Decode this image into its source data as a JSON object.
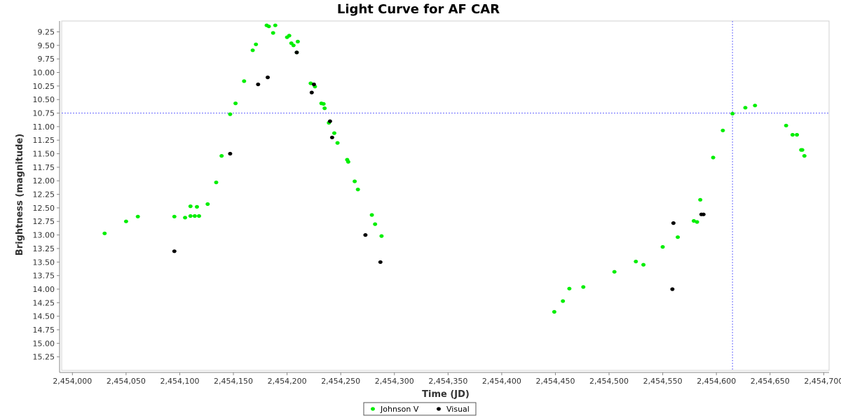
{
  "chart_data": {
    "type": "scatter",
    "title": "Light Curve for AF CAR",
    "xlabel": "Time (JD)",
    "ylabel": "Brightness (magnitude)",
    "xlim": [
      2453990,
      2454705
    ],
    "ylim": [
      9.05,
      15.5
    ],
    "y_inverted": true,
    "x_ticks": [
      2454000,
      2454050,
      2454100,
      2454150,
      2454200,
      2454250,
      2454300,
      2454350,
      2454400,
      2454450,
      2454500,
      2454550,
      2454600,
      2454650,
      2454700
    ],
    "x_tick_labels": [
      "2,454,000",
      "2,454,050",
      "2,454,100",
      "2,454,150",
      "2,454,200",
      "2,454,250",
      "2,454,300",
      "2,454,350",
      "2,454,400",
      "2,454,450",
      "2,454,500",
      "2,454,550",
      "2,454,600",
      "2,454,650",
      "2,454,700"
    ],
    "y_ticks": [
      9.25,
      9.5,
      9.75,
      10.0,
      10.25,
      10.5,
      10.75,
      11.0,
      11.25,
      11.5,
      11.75,
      12.0,
      12.25,
      12.5,
      12.75,
      13.0,
      13.25,
      13.5,
      13.75,
      14.0,
      14.25,
      14.5,
      14.75,
      15.0,
      15.25
    ],
    "y_tick_labels": [
      "9.25",
      "9.50",
      "9.75",
      "10.00",
      "10.25",
      "10.50",
      "10.75",
      "11.00",
      "11.25",
      "11.50",
      "11.75",
      "12.00",
      "12.25",
      "12.50",
      "12.75",
      "13.00",
      "13.25",
      "13.50",
      "13.75",
      "14.00",
      "14.25",
      "14.50",
      "14.75",
      "15.00",
      "15.25"
    ],
    "crosshair": {
      "x": 2454615,
      "y": 10.75,
      "color": "#6a6aff"
    },
    "grid": false,
    "legend_position": "bottom-center",
    "series": [
      {
        "name": "Johnson V",
        "color": "#00ee00",
        "points": [
          [
            2454030,
            12.97
          ],
          [
            2454050,
            12.75
          ],
          [
            2454061,
            12.66
          ],
          [
            2454095,
            12.66
          ],
          [
            2454105,
            12.68
          ],
          [
            2454110,
            12.47
          ],
          [
            2454110,
            12.65
          ],
          [
            2454114,
            12.65
          ],
          [
            2454116,
            12.48
          ],
          [
            2454118,
            12.65
          ],
          [
            2454126,
            12.43
          ],
          [
            2454134,
            12.03
          ],
          [
            2454139,
            11.54
          ],
          [
            2454147,
            10.77
          ],
          [
            2454152,
            10.57
          ],
          [
            2454160,
            10.16
          ],
          [
            2454168,
            9.59
          ],
          [
            2454171,
            9.48
          ],
          [
            2454181,
            9.13
          ],
          [
            2454183,
            9.15
          ],
          [
            2454187,
            9.27
          ],
          [
            2454189,
            9.13
          ],
          [
            2454200,
            9.35
          ],
          [
            2454202,
            9.32
          ],
          [
            2454204,
            9.46
          ],
          [
            2454206,
            9.5
          ],
          [
            2454209,
            9.63
          ],
          [
            2454210,
            9.43
          ],
          [
            2454222,
            10.2
          ],
          [
            2454226,
            10.26
          ],
          [
            2454232,
            10.57
          ],
          [
            2454234,
            10.58
          ],
          [
            2454235,
            10.66
          ],
          [
            2454239,
            10.93
          ],
          [
            2454244,
            11.12
          ],
          [
            2454247,
            11.3
          ],
          [
            2454256,
            11.61
          ],
          [
            2454257,
            11.65
          ],
          [
            2454263,
            12.01
          ],
          [
            2454266,
            12.16
          ],
          [
            2454279,
            12.63
          ],
          [
            2454282,
            12.8
          ],
          [
            2454288,
            13.02
          ],
          [
            2454449,
            14.42
          ],
          [
            2454457,
            14.22
          ],
          [
            2454463,
            13.99
          ],
          [
            2454476,
            13.96
          ],
          [
            2454505,
            13.68
          ],
          [
            2454525,
            13.49
          ],
          [
            2454532,
            13.55
          ],
          [
            2454550,
            13.22
          ],
          [
            2454564,
            13.04
          ],
          [
            2454579,
            12.74
          ],
          [
            2454582,
            12.76
          ],
          [
            2454585,
            12.35
          ],
          [
            2454597,
            11.57
          ],
          [
            2454606,
            11.07
          ],
          [
            2454615,
            10.76
          ],
          [
            2454627,
            10.65
          ],
          [
            2454636,
            10.61
          ],
          [
            2454665,
            10.98
          ],
          [
            2454671,
            11.15
          ],
          [
            2454675,
            11.15
          ],
          [
            2454679,
            11.43
          ],
          [
            2454680,
            11.43
          ],
          [
            2454682,
            11.54
          ]
        ]
      },
      {
        "name": "Visual",
        "color": "#000000",
        "points": [
          [
            2454095,
            13.3
          ],
          [
            2454147,
            11.5
          ],
          [
            2454173,
            10.22
          ],
          [
            2454182,
            10.09
          ],
          [
            2454209,
            9.63
          ],
          [
            2454223,
            10.37
          ],
          [
            2454225,
            10.22
          ],
          [
            2454240,
            10.9
          ],
          [
            2454242,
            11.2
          ],
          [
            2454273,
            13.0
          ],
          [
            2454287,
            13.5
          ],
          [
            2454559,
            14.0
          ],
          [
            2454560,
            12.78
          ],
          [
            2454586,
            12.62
          ],
          [
            2454588,
            12.62
          ]
        ]
      }
    ]
  }
}
